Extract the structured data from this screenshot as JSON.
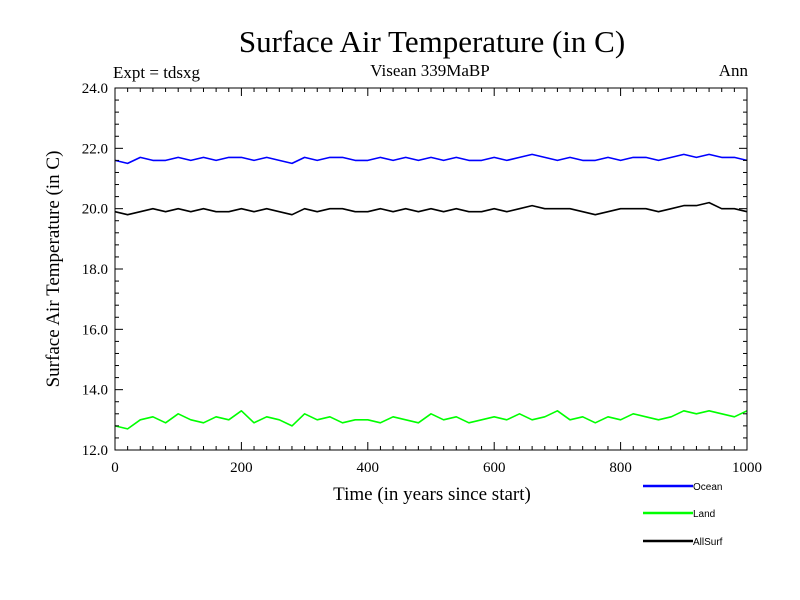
{
  "chart_data": {
    "type": "line",
    "title": "Surface Air Temperature (in C)",
    "subtitle_left": "Expt = tdsxg",
    "subtitle_center": "Visean 339MaBP",
    "subtitle_right": "Ann",
    "xlabel": "Time (in years since start)",
    "ylabel": "Surface Air Temperature (in C)",
    "xlim": [
      0,
      1000
    ],
    "ylim": [
      12.0,
      24.0
    ],
    "xticks": [
      0,
      200,
      400,
      600,
      800,
      1000
    ],
    "xtick_labels": [
      "0",
      "200",
      "400",
      "600",
      "800",
      "1000"
    ],
    "yticks": [
      12.0,
      14.0,
      16.0,
      18.0,
      20.0,
      22.0,
      24.0
    ],
    "ytick_labels": [
      "12.0",
      "14.0",
      "16.0",
      "18.0",
      "20.0",
      "22.0",
      "24.0"
    ],
    "grid": false,
    "legend_position": "bottom-right, below plot",
    "series": [
      {
        "name": "Ocean",
        "color": "#0000ff",
        "x": [
          0,
          20,
          40,
          60,
          80,
          100,
          120,
          140,
          160,
          180,
          200,
          220,
          240,
          260,
          280,
          300,
          320,
          340,
          360,
          380,
          400,
          420,
          440,
          460,
          480,
          500,
          520,
          540,
          560,
          580,
          600,
          620,
          640,
          660,
          680,
          700,
          720,
          740,
          760,
          780,
          800,
          820,
          840,
          860,
          880,
          900,
          920,
          940,
          960,
          980,
          1000
        ],
        "values": [
          21.6,
          21.5,
          21.7,
          21.6,
          21.6,
          21.7,
          21.6,
          21.7,
          21.6,
          21.7,
          21.7,
          21.6,
          21.7,
          21.6,
          21.5,
          21.7,
          21.6,
          21.7,
          21.7,
          21.6,
          21.6,
          21.7,
          21.6,
          21.7,
          21.6,
          21.7,
          21.6,
          21.7,
          21.6,
          21.6,
          21.7,
          21.6,
          21.7,
          21.8,
          21.7,
          21.6,
          21.7,
          21.6,
          21.6,
          21.7,
          21.6,
          21.7,
          21.7,
          21.6,
          21.7,
          21.8,
          21.7,
          21.8,
          21.7,
          21.7,
          21.6
        ]
      },
      {
        "name": "Land",
        "color": "#00ff00",
        "x": [
          0,
          20,
          40,
          60,
          80,
          100,
          120,
          140,
          160,
          180,
          200,
          220,
          240,
          260,
          280,
          300,
          320,
          340,
          360,
          380,
          400,
          420,
          440,
          460,
          480,
          500,
          520,
          540,
          560,
          580,
          600,
          620,
          640,
          660,
          680,
          700,
          720,
          740,
          760,
          780,
          800,
          820,
          840,
          860,
          880,
          900,
          920,
          940,
          960,
          980,
          1000
        ],
        "values": [
          12.8,
          12.7,
          13.0,
          13.1,
          12.9,
          13.2,
          13.0,
          12.9,
          13.1,
          13.0,
          13.3,
          12.9,
          13.1,
          13.0,
          12.8,
          13.2,
          13.0,
          13.1,
          12.9,
          13.0,
          13.0,
          12.9,
          13.1,
          13.0,
          12.9,
          13.2,
          13.0,
          13.1,
          12.9,
          13.0,
          13.1,
          13.0,
          13.2,
          13.0,
          13.1,
          13.3,
          13.0,
          13.1,
          12.9,
          13.1,
          13.0,
          13.2,
          13.1,
          13.0,
          13.1,
          13.3,
          13.2,
          13.3,
          13.2,
          13.1,
          13.3
        ]
      },
      {
        "name": "AllSurf",
        "color": "#000000",
        "x": [
          0,
          20,
          40,
          60,
          80,
          100,
          120,
          140,
          160,
          180,
          200,
          220,
          240,
          260,
          280,
          300,
          320,
          340,
          360,
          380,
          400,
          420,
          440,
          460,
          480,
          500,
          520,
          540,
          560,
          580,
          600,
          620,
          640,
          660,
          680,
          700,
          720,
          740,
          760,
          780,
          800,
          820,
          840,
          860,
          880,
          900,
          920,
          940,
          960,
          980,
          1000
        ],
        "values": [
          19.9,
          19.8,
          19.9,
          20.0,
          19.9,
          20.0,
          19.9,
          20.0,
          19.9,
          19.9,
          20.0,
          19.9,
          20.0,
          19.9,
          19.8,
          20.0,
          19.9,
          20.0,
          20.0,
          19.9,
          19.9,
          20.0,
          19.9,
          20.0,
          19.9,
          20.0,
          19.9,
          20.0,
          19.9,
          19.9,
          20.0,
          19.9,
          20.0,
          20.1,
          20.0,
          20.0,
          20.0,
          19.9,
          19.8,
          19.9,
          20.0,
          20.0,
          20.0,
          19.9,
          20.0,
          20.1,
          20.1,
          20.2,
          20.0,
          20.0,
          19.9
        ]
      }
    ]
  }
}
